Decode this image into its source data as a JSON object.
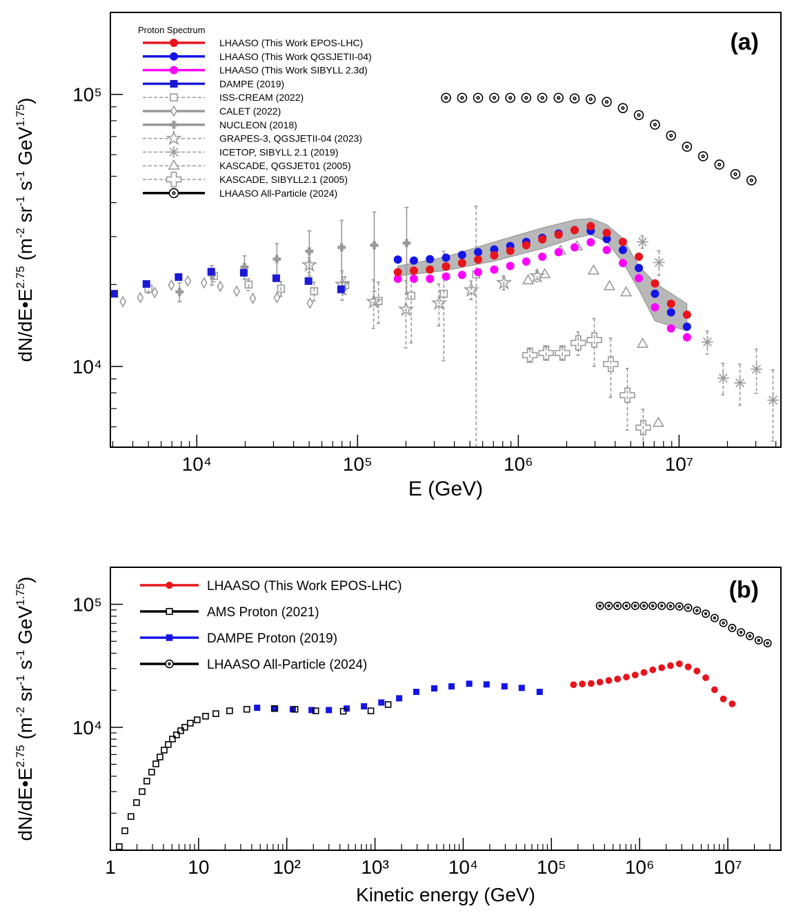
{
  "chart_data": [
    {
      "type": "scatter",
      "panel_label": "(a)",
      "legend_title": "Proton Spectrum",
      "xlabel": "E (GeV)",
      "ylabel": [
        "dN/dE•E",
        "2.75",
        " (m",
        "-2",
        " sr",
        "-1",
        " s",
        "-1",
        " GeV",
        "1.75",
        ")"
      ],
      "xlog": true,
      "ylog": true,
      "xlim": [
        2900,
        43000000
      ],
      "ylim": [
        5050,
        200000
      ],
      "xticks": [
        {
          "value": 10000,
          "label": "10⁴"
        },
        {
          "value": 100000,
          "label": "10⁵"
        },
        {
          "value": 1000000,
          "label": "10⁶"
        },
        {
          "value": 10000000,
          "label": "10⁷"
        }
      ],
      "yticks": [
        {
          "value": 10000,
          "label": "10⁴"
        },
        {
          "value": 100000,
          "label": "10⁵"
        }
      ],
      "xminor": [
        3000,
        4000,
        5000,
        6000,
        7000,
        8000,
        9000,
        20000,
        30000,
        40000,
        50000,
        60000,
        70000,
        80000,
        90000,
        200000,
        300000,
        400000,
        500000,
        600000,
        700000,
        800000,
        900000,
        2000000,
        3000000,
        4000000,
        5000000,
        6000000,
        7000000,
        8000000,
        9000000,
        20000000,
        30000000,
        40000000
      ],
      "yminor": [
        6000,
        7000,
        8000,
        9000,
        20000,
        30000,
        40000,
        50000,
        60000,
        70000,
        80000,
        90000
      ],
      "band": {
        "color": "#a0a0a0",
        "x": [
          178000,
          355000,
          708000,
          1410000,
          2240000,
          2820000,
          3550000,
          4470000,
          5620000,
          7080000,
          11200000
        ],
        "upper": [
          23400,
          25300,
          28700,
          32300,
          34600,
          35000,
          33200,
          29600,
          23400,
          20300,
          17000
        ],
        "lower": [
          21500,
          22500,
          24400,
          27100,
          29600,
          30500,
          28700,
          24100,
          19100,
          14700,
          13500
        ]
      },
      "series": [
        {
          "name": "LHAASO (This Work EPOS-LHC)",
          "color": "#e8141c",
          "marker": "circle",
          "filled": true,
          "dash": false,
          "x": [
            178000,
            224000,
            282000,
            355000,
            447000,
            562000,
            708000,
            891000,
            1120000,
            1410000,
            1780000,
            2240000,
            2820000,
            3550000,
            4470000,
            5620000,
            7080000,
            8910000,
            11200000
          ],
          "values": [
            22200,
            22500,
            22700,
            23300,
            24000,
            24700,
            25600,
            26600,
            27900,
            29300,
            30500,
            31700,
            32800,
            31000,
            28700,
            25300,
            20200,
            17000,
            15500
          ]
        },
        {
          "name": "LHAASO (This Work QGSJETII-04)",
          "color": "#1414e6",
          "marker": "circle",
          "filled": true,
          "dash": false,
          "x": [
            178000,
            224000,
            282000,
            355000,
            447000,
            562000,
            708000,
            891000,
            1120000,
            1410000,
            1780000,
            2240000,
            2820000,
            3550000,
            4470000,
            5620000,
            7080000,
            8910000,
            11200000
          ],
          "values": [
            24700,
            24500,
            24800,
            25100,
            25700,
            26300,
            26900,
            27700,
            28700,
            29700,
            30800,
            31700,
            31500,
            29400,
            26800,
            23000,
            18500,
            15800,
            14000
          ]
        },
        {
          "name": "LHAASO (This Work SIBYLL 2.3d)",
          "color": "#ff00ff",
          "marker": "circle",
          "filled": true,
          "dash": false,
          "x": [
            178000,
            224000,
            282000,
            355000,
            447000,
            562000,
            708000,
            891000,
            1120000,
            1410000,
            1780000,
            2240000,
            2820000,
            3550000,
            4470000,
            5620000,
            7080000,
            8910000,
            11200000
          ],
          "values": [
            21000,
            21000,
            21000,
            21400,
            21700,
            22200,
            22700,
            23400,
            24300,
            25300,
            26300,
            27400,
            28600,
            26800,
            24000,
            21100,
            16500,
            13800,
            12800
          ]
        },
        {
          "name": "DAMPE (2019)",
          "color": "#1a1ad6",
          "marker": "square",
          "filled": true,
          "dash": false,
          "x": [
            3060,
            4860,
            7700,
            12300,
            19600,
            31200,
            49500,
            78900
          ],
          "values": [
            18500,
            20100,
            21300,
            22300,
            22100,
            21100,
            20600,
            19200
          ]
        },
        {
          "name": "ISS-CREAM (2022)",
          "color": "#999999",
          "marker": "square",
          "filled": false,
          "dash": true,
          "x": [
            5010,
            12800,
            21000,
            33400,
            53700,
            83700,
            135000,
            216000,
            344000,
            547000
          ],
          "values": [
            19300,
            21500,
            20000,
            19300,
            18900,
            19900,
            17400,
            18200,
            18500,
            21800
          ],
          "errors": [
            700,
            1000,
            1000,
            1200,
            1500,
            1500,
            3000,
            6000,
            8000,
            17000
          ]
        },
        {
          "name": "CALET (2022)",
          "color": "#999999",
          "marker": "diamond",
          "filled": false,
          "dash": false,
          "x": [
            3470,
            4450,
            5470,
            6940,
            8790,
            11100,
            14000,
            17700,
            22300,
            31500,
            50600,
            80500
          ],
          "values": [
            17300,
            17900,
            18700,
            19900,
            20600,
            20300,
            19700,
            18900,
            17800,
            17900,
            17100,
            19200
          ]
        },
        {
          "name": "NUCLEON (2018)",
          "color": "#999999",
          "marker": "plus",
          "filled": true,
          "dash": false,
          "x": [
            7810,
            12400,
            19800,
            31500,
            50100,
            79600,
            127000,
            202000
          ],
          "values": [
            18800,
            21700,
            23200,
            24800,
            26500,
            27400,
            27900,
            28400
          ],
          "errors": [
            1500,
            1800,
            2300,
            3500,
            5000,
            7000,
            9000,
            10000
          ]
        },
        {
          "name": "GRAPES-3, QGSJETII-04 (2023)",
          "color": "#999999",
          "marker": "star",
          "filled": false,
          "dash": true,
          "x": [
            50100,
            80500,
            126000,
            200000,
            321000,
            510000,
            813000,
            1310000
          ],
          "values": [
            23600,
            20000,
            17300,
            16200,
            17100,
            19100,
            20300,
            21500
          ],
          "errors": [
            1500,
            2500,
            3500,
            4500,
            3000,
            1500,
            1200,
            1000
          ]
        },
        {
          "name": "ICETOP, SIBYLL 2.1 (2019)",
          "color": "#999999",
          "marker": "asterisk",
          "filled": false,
          "dash": true,
          "x": [
            5930000,
            7510000,
            15000000,
            18800000,
            23900000,
            30300000,
            38400000
          ],
          "values": [
            28700,
            24100,
            12300,
            9060,
            8700,
            9770,
            7520
          ],
          "errors": [
            1500,
            2500,
            1200,
            1200,
            1500,
            1800,
            2200
          ]
        },
        {
          "name": "KASCADE, QGSJET01 (2005)",
          "color": "#999999",
          "marker": "triangle",
          "filled": false,
          "dash": true,
          "x": [
            1150000,
            1460000,
            1830000,
            2320000,
            2940000,
            3690000,
            4680000,
            5930000,
            7430000
          ],
          "values": [
            20700,
            21800,
            26600,
            27600,
            22500,
            19700,
            18700,
            12100,
            6200
          ]
        },
        {
          "name": "KASCADE, SIBYLL2.1 (2005)",
          "color": "#999999",
          "marker": "pluso",
          "filled": false,
          "dash": true,
          "x": [
            1180000,
            1490000,
            1880000,
            2360000,
            2970000,
            3760000,
            4770000,
            5980000
          ],
          "values": [
            11000,
            11200,
            11200,
            12200,
            12500,
            10200,
            7840,
            5960
          ],
          "errors": [
            600,
            600,
            600,
            1200,
            2500,
            2500,
            2000,
            1000
          ]
        },
        {
          "name": "LHAASO All-Particle (2024)",
          "color": "#000000",
          "marker": "circledot",
          "filled": false,
          "dash": false,
          "x": [
            355000,
            447000,
            562000,
            708000,
            891000,
            1120000,
            1410000,
            1780000,
            2240000,
            2820000,
            3550000,
            4470000,
            5620000,
            7080000,
            8910000,
            11200000,
            14100000,
            17800000,
            22400000,
            28200000
          ],
          "values": [
            97100,
            97100,
            97100,
            97100,
            97100,
            97100,
            97100,
            97100,
            96600,
            96000,
            93800,
            89000,
            83900,
            77400,
            70500,
            64200,
            59200,
            55200,
            50900,
            48300
          ]
        }
      ]
    },
    {
      "type": "scatter",
      "panel_label": "(b)",
      "xlabel": "Kinetic energy (GeV)",
      "ylabel": [
        "dN/dE•E",
        "2.75",
        " (m",
        "-2",
        " sr",
        "-1",
        " s",
        "-1",
        " GeV",
        "1.75",
        ")"
      ],
      "xlog": true,
      "ylog": true,
      "xlim": [
        1,
        40000000
      ],
      "ylim": [
        1000,
        200000
      ],
      "xticks": [
        1,
        10,
        {
          "value": 100,
          "label": "10²"
        },
        {
          "value": 1000,
          "label": "10³"
        },
        {
          "value": 10000,
          "label": "10⁴"
        },
        {
          "value": 100000,
          "label": "10⁵"
        },
        {
          "value": 1000000,
          "label": "10⁶"
        },
        {
          "value": 10000000,
          "label": "10⁷"
        }
      ],
      "yticks": [
        {
          "value": 10000,
          "label": "10⁴"
        },
        {
          "value": 100000,
          "label": "10⁵"
        }
      ],
      "xminor": [
        2,
        3,
        4,
        5,
        6,
        7,
        8,
        9,
        20,
        30,
        40,
        50,
        60,
        70,
        80,
        90,
        200,
        300,
        400,
        500,
        600,
        700,
        800,
        900,
        2000,
        3000,
        4000,
        5000,
        6000,
        7000,
        8000,
        9000,
        20000,
        30000,
        40000,
        50000,
        60000,
        70000,
        80000,
        90000,
        200000,
        300000,
        400000,
        500000,
        600000,
        700000,
        800000,
        900000,
        2000000,
        3000000,
        4000000,
        5000000,
        6000000,
        7000000,
        8000000,
        9000000,
        20000000,
        30000000
      ],
      "yminor": [
        2000,
        3000,
        4000,
        5000,
        6000,
        7000,
        8000,
        9000,
        20000,
        30000,
        40000,
        50000,
        60000,
        70000,
        80000,
        90000
      ],
      "series": [
        {
          "name": "LHAASO (This Work EPOS-LHC)",
          "color": "#e8141c",
          "marker": "circle",
          "filled": true,
          "dash": false,
          "x": [
            178000,
            224000,
            282000,
            355000,
            447000,
            562000,
            708000,
            891000,
            1120000,
            1410000,
            1780000,
            2240000,
            2820000,
            3550000,
            4470000,
            5620000,
            7080000,
            8910000,
            11200000
          ],
          "values": [
            22200,
            22500,
            22700,
            23300,
            24000,
            24700,
            25600,
            26600,
            27900,
            29300,
            30500,
            31700,
            32800,
            31000,
            28700,
            25300,
            20200,
            17000,
            15500
          ]
        },
        {
          "name": "AMS Proton (2021)",
          "color": "#000000",
          "marker": "square",
          "filled": false,
          "dash": false,
          "x": [
            1.26,
            1.46,
            1.71,
            1.98,
            2.29,
            2.59,
            2.94,
            3.28,
            3.65,
            4.07,
            4.53,
            5.05,
            5.62,
            6.27,
            6.98,
            8.06,
            9.64,
            12.0,
            15.7,
            22.5,
            35.2,
            72.3,
            124,
            213,
            437,
            898,
            1410
          ],
          "values": [
            1070,
            1440,
            1880,
            2440,
            3000,
            3650,
            4320,
            5040,
            5730,
            6530,
            7240,
            8020,
            8670,
            9370,
            10000,
            10800,
            11500,
            12300,
            12900,
            13600,
            14000,
            14200,
            14000,
            13600,
            13500,
            13600,
            15300
          ]
        },
        {
          "name": "DAMPE Proton (2019)",
          "color": "#1414e6",
          "marker": "square",
          "filled": true,
          "dash": false,
          "x": [
            46.1,
            73.6,
            117,
            191,
            300,
            478,
            750,
            1180,
            1880,
            2940,
            4700,
            7370,
            11700,
            18400,
            29400,
            46100,
            73600
          ],
          "values": [
            14400,
            14200,
            14000,
            13800,
            13800,
            14200,
            14800,
            15900,
            17200,
            19400,
            20700,
            21500,
            22600,
            22300,
            21500,
            20900,
            19400
          ]
        },
        {
          "name": "LHAASO All-Particle (2024)",
          "color": "#000000",
          "marker": "circledot",
          "filled": false,
          "dash": false,
          "x": [
            355000,
            447000,
            562000,
            708000,
            891000,
            1120000,
            1410000,
            1780000,
            2240000,
            2820000,
            3550000,
            4470000,
            5620000,
            7080000,
            8910000,
            11200000,
            14100000,
            17800000,
            22400000,
            28200000
          ],
          "values": [
            97100,
            97100,
            97100,
            97100,
            97100,
            97100,
            97100,
            97100,
            96600,
            96000,
            93800,
            89000,
            83900,
            77400,
            70500,
            64200,
            59200,
            55200,
            50900,
            48300
          ]
        }
      ]
    }
  ]
}
